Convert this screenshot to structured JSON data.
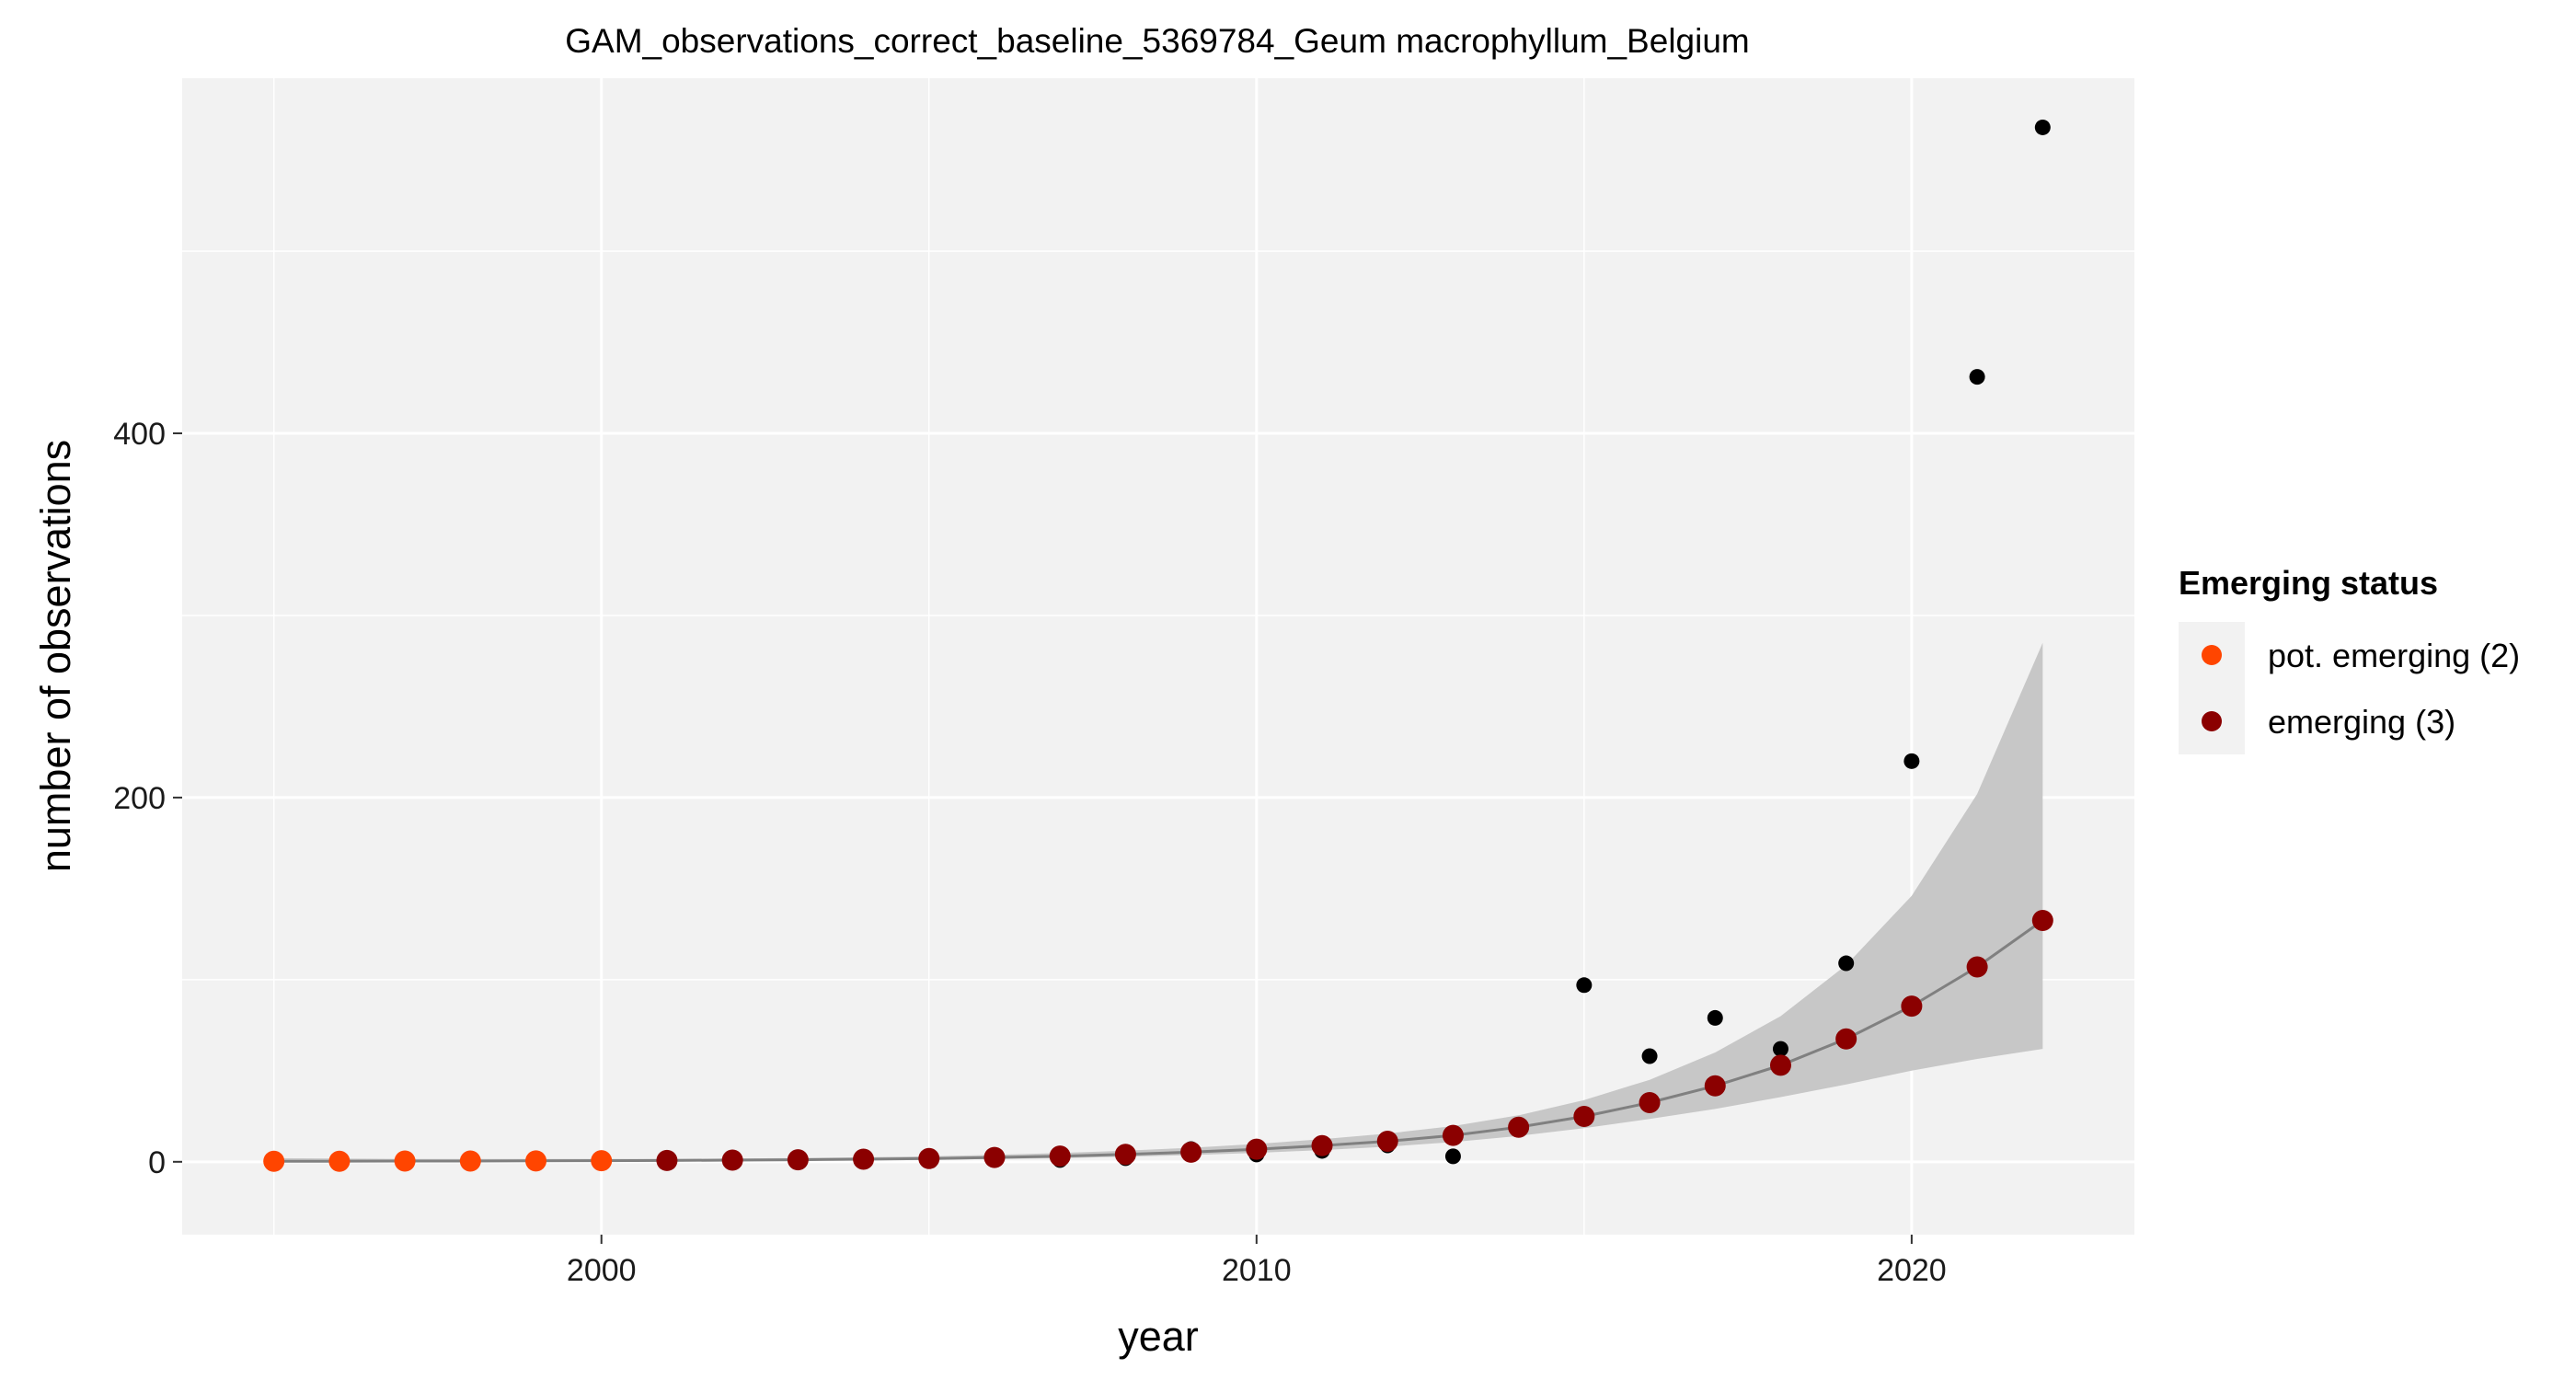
{
  "chart_data": {
    "type": "scatter",
    "title": "GAM_observations_correct_baseline_5369784_Geum macrophyllum_Belgium",
    "xlabel": "year",
    "ylabel": "number of observations",
    "xlim": [
      1993.6,
      2023.4
    ],
    "ylim": [
      -40,
      595
    ],
    "x_ticks": [
      2000,
      2010,
      2020
    ],
    "x_minor_ticks": [
      1995,
      2005,
      2015
    ],
    "y_ticks": [
      0,
      200,
      400
    ],
    "y_minor_ticks": [
      100,
      300,
      500
    ],
    "grid": true,
    "legend": {
      "title": "Emerging status",
      "position": "right",
      "entries": [
        {
          "label": "pot. emerging (2)",
          "color": "#FF4500"
        },
        {
          "label": "emerging (3)",
          "color": "#8B0000"
        }
      ]
    },
    "observations": {
      "color": "#000000",
      "points": [
        {
          "x": 2001,
          "y": 1
        },
        {
          "x": 2002,
          "y": 1
        },
        {
          "x": 2003,
          "y": 1
        },
        {
          "x": 2004,
          "y": 1
        },
        {
          "x": 2005,
          "y": 1
        },
        {
          "x": 2006,
          "y": 3
        },
        {
          "x": 2007,
          "y": 1
        },
        {
          "x": 2008,
          "y": 2
        },
        {
          "x": 2009,
          "y": 7
        },
        {
          "x": 2010,
          "y": 4
        },
        {
          "x": 2011,
          "y": 6
        },
        {
          "x": 2012,
          "y": 9
        },
        {
          "x": 2013,
          "y": 3
        },
        {
          "x": 2014,
          "y": 19
        },
        {
          "x": 2015,
          "y": 97
        },
        {
          "x": 2016,
          "y": 58
        },
        {
          "x": 2017,
          "y": 79
        },
        {
          "x": 2018,
          "y": 62
        },
        {
          "x": 2019,
          "y": 109
        },
        {
          "x": 2020,
          "y": 220
        },
        {
          "x": 2021,
          "y": 431
        },
        {
          "x": 2022,
          "y": 568
        }
      ]
    },
    "fit": {
      "line_color": "#808080",
      "band_color": "#C4C4C4",
      "points": [
        {
          "x": 1995,
          "y": 0.3,
          "lower": 0.0,
          "upper": 2.0,
          "status": "pot. emerging (2)"
        },
        {
          "x": 1996,
          "y": 0.3,
          "lower": 0.0,
          "upper": 1.8,
          "status": "pot. emerging (2)"
        },
        {
          "x": 1997,
          "y": 0.4,
          "lower": 0.0,
          "upper": 1.6,
          "status": "pot. emerging (2)"
        },
        {
          "x": 1998,
          "y": 0.4,
          "lower": 0.0,
          "upper": 1.5,
          "status": "pot. emerging (2)"
        },
        {
          "x": 1999,
          "y": 0.5,
          "lower": 0.1,
          "upper": 1.5,
          "status": "pot. emerging (2)"
        },
        {
          "x": 2000,
          "y": 0.6,
          "lower": 0.2,
          "upper": 1.5,
          "status": "pot. emerging (2)"
        },
        {
          "x": 2001,
          "y": 0.7,
          "lower": 0.3,
          "upper": 1.6,
          "status": "emerging (3)"
        },
        {
          "x": 2002,
          "y": 0.9,
          "lower": 0.4,
          "upper": 1.8,
          "status": "emerging (3)"
        },
        {
          "x": 2003,
          "y": 1.1,
          "lower": 0.6,
          "upper": 2.1,
          "status": "emerging (3)"
        },
        {
          "x": 2004,
          "y": 1.4,
          "lower": 0.8,
          "upper": 2.5,
          "status": "emerging (3)"
        },
        {
          "x": 2005,
          "y": 1.8,
          "lower": 1.1,
          "upper": 3.0,
          "status": "emerging (3)"
        },
        {
          "x": 2006,
          "y": 2.4,
          "lower": 1.5,
          "upper": 3.8,
          "status": "emerging (3)"
        },
        {
          "x": 2007,
          "y": 3.1,
          "lower": 2.0,
          "upper": 4.8,
          "status": "emerging (3)"
        },
        {
          "x": 2008,
          "y": 4.1,
          "lower": 2.8,
          "upper": 6.1,
          "status": "emerging (3)"
        },
        {
          "x": 2009,
          "y": 5.3,
          "lower": 3.7,
          "upper": 7.7,
          "status": "emerging (3)"
        },
        {
          "x": 2010,
          "y": 6.9,
          "lower": 4.9,
          "upper": 9.8,
          "status": "emerging (3)"
        },
        {
          "x": 2011,
          "y": 8.9,
          "lower": 6.4,
          "upper": 12.4,
          "status": "emerging (3)"
        },
        {
          "x": 2012,
          "y": 11.3,
          "lower": 8.3,
          "upper": 15.5,
          "status": "emerging (3)"
        },
        {
          "x": 2013,
          "y": 14.5,
          "lower": 10.8,
          "upper": 19.6,
          "status": "emerging (3)"
        },
        {
          "x": 2014,
          "y": 19.0,
          "lower": 14.2,
          "upper": 25.5,
          "status": "emerging (3)"
        },
        {
          "x": 2015,
          "y": 24.9,
          "lower": 18.5,
          "upper": 33.9,
          "status": "emerging (3)"
        },
        {
          "x": 2016,
          "y": 32.5,
          "lower": 23.5,
          "upper": 45.0,
          "status": "emerging (3)"
        },
        {
          "x": 2017,
          "y": 41.7,
          "lower": 29.0,
          "upper": 60.0,
          "status": "emerging (3)"
        },
        {
          "x": 2018,
          "y": 53.0,
          "lower": 35.5,
          "upper": 80.0,
          "status": "emerging (3)"
        },
        {
          "x": 2019,
          "y": 67.5,
          "lower": 42.5,
          "upper": 108.0,
          "status": "emerging (3)"
        },
        {
          "x": 2020,
          "y": 85.5,
          "lower": 50.0,
          "upper": 146.0,
          "status": "emerging (3)"
        },
        {
          "x": 2021,
          "y": 107.0,
          "lower": 56.5,
          "upper": 202.0,
          "status": "emerging (3)"
        },
        {
          "x": 2022,
          "y": 132.5,
          "lower": 62.0,
          "upper": 285.0,
          "status": "emerging (3)"
        }
      ]
    }
  }
}
